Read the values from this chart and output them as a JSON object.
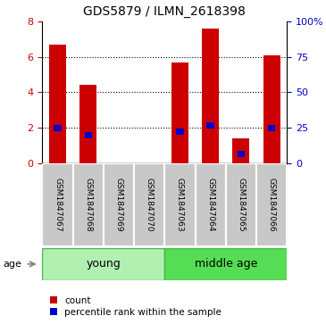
{
  "title": "GDS5879 / ILMN_2618398",
  "samples": [
    "GSM1847067",
    "GSM1847068",
    "GSM1847069",
    "GSM1847070",
    "GSM1847063",
    "GSM1847064",
    "GSM1847065",
    "GSM1847066"
  ],
  "red_values": [
    6.7,
    4.4,
    0.0,
    0.0,
    5.7,
    7.6,
    1.4,
    6.1
  ],
  "blue_pct": [
    25.0,
    20.0,
    0.0,
    0.0,
    22.5,
    26.875,
    6.875,
    25.0
  ],
  "ylim_left": [
    0,
    8
  ],
  "ylim_right": [
    0,
    100
  ],
  "yticks_left": [
    0,
    2,
    4,
    6,
    8
  ],
  "yticks_right": [
    0,
    25,
    50,
    75,
    100
  ],
  "left_color": "#cc0000",
  "right_color": "#0000cc",
  "bar_color_red": "#cc0000",
  "bar_color_blue": "#0000cc",
  "gray_box": "#c8c8c8",
  "green_young": "#b2f0b2",
  "green_mid": "#55dd55",
  "group_border": "#44bb44",
  "title_fontsize": 10,
  "tick_fontsize": 8,
  "sample_fontsize": 6.5,
  "group_fontsize": 9,
  "legend_fontsize": 7.5
}
